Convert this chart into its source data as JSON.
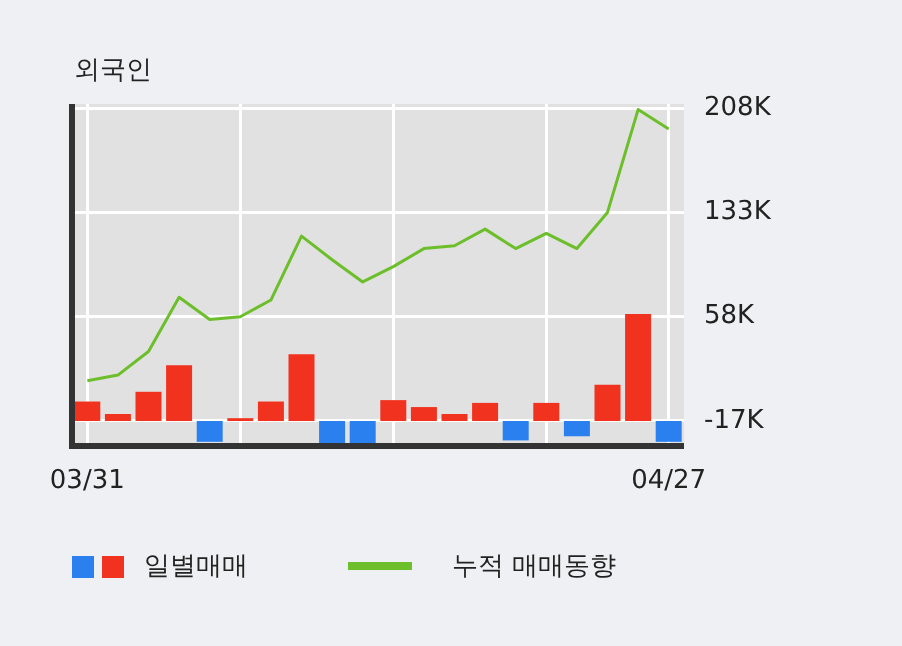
{
  "chart_data": {
    "type": "bar",
    "title": "외국인",
    "categories": [
      "03/31",
      null,
      null,
      null,
      null,
      null,
      null,
      null,
      null,
      null,
      null,
      null,
      null,
      null,
      null,
      null,
      null,
      null,
      null,
      "04/27"
    ],
    "series": [
      {
        "name": "일별매매",
        "colors": [
          "#f0321e",
          "#f0321e",
          "#f0321e",
          "#f0321e",
          "#2a80ee",
          "#f0321e",
          "#f0321e",
          "#f0321e",
          "#2a80ee",
          "#2a80ee",
          "#f0321e",
          "#f0321e",
          "#f0321e",
          "#f0321e",
          "#2a80ee",
          "#f0321e",
          "#2a80ee",
          "#f0321e",
          "#f0321e",
          "#2a80ee"
        ],
        "values": [
          14,
          5,
          21,
          40,
          -15,
          2,
          14,
          48,
          -17,
          -16,
          15,
          10,
          5,
          13,
          -14,
          13,
          -11,
          26,
          77,
          -15
        ],
        "base": [
          -17,
          -17,
          -17,
          -17,
          -17,
          -17,
          -17,
          -17,
          -17,
          -17,
          -17,
          -17,
          -17,
          -17,
          -17,
          -17,
          -17,
          -17,
          -17,
          -17
        ]
      },
      {
        "name": "누적 매매동향",
        "type": "line",
        "color": "#6cbf2a",
        "values": [
          12,
          16,
          33,
          72,
          56,
          58,
          70,
          116,
          99,
          83,
          94,
          107,
          109,
          121,
          107,
          118,
          107,
          133,
          207,
          193
        ]
      }
    ],
    "ylim": [
      -35,
      211
    ],
    "yticks": [
      {
        "value": -17,
        "label": "-17K"
      },
      {
        "value": 58,
        "label": "58K"
      },
      {
        "value": 133,
        "label": "133K"
      },
      {
        "value": 208,
        "label": "208K"
      }
    ],
    "grid": true,
    "legend": "bottom left",
    "marker": "none"
  }
}
